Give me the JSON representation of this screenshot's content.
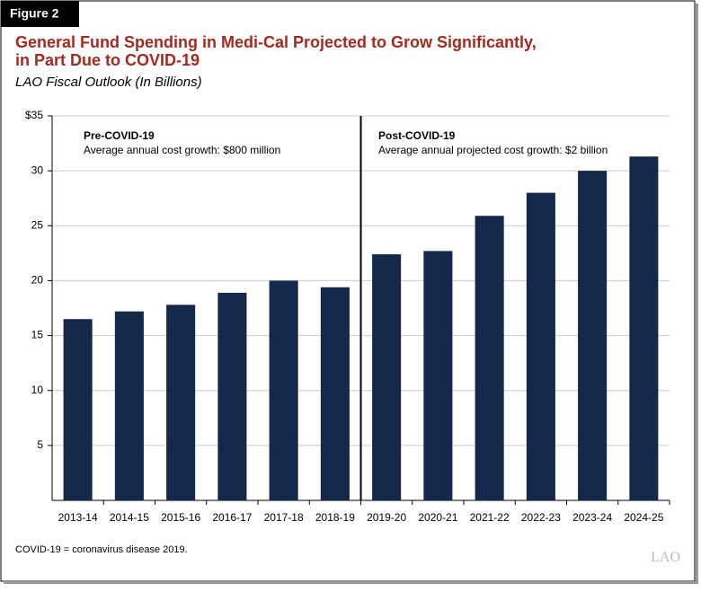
{
  "figure_label": "Figure 2",
  "chart_data": {
    "type": "bar",
    "title": "General Fund Spending in Medi-Cal Projected to Grow Significantly,",
    "title_line2": "in Part Due to COVID-19",
    "subtitle": "LAO Fiscal Outlook (In Billions)",
    "categories": [
      "2013-14",
      "2014-15",
      "2015-16",
      "2016-17",
      "2017-18",
      "2018-19",
      "2019-20",
      "2020-21",
      "2021-22",
      "2022-23",
      "2023-24",
      "2024-25"
    ],
    "values": [
      16.5,
      17.2,
      17.8,
      18.9,
      20.0,
      19.4,
      22.4,
      22.7,
      25.9,
      28.0,
      30.0,
      31.3
    ],
    "color": "#14284b",
    "ylim": [
      0,
      35
    ],
    "yticks": [
      5,
      10,
      15,
      20,
      25,
      30,
      {
        "value": 35,
        "label": "$35"
      }
    ],
    "grid": true,
    "annotations": [
      {
        "heading": "Pre-COVID-19",
        "text": "Average annual cost growth: $800 million"
      },
      {
        "heading": "Post-COVID-19",
        "text": "Average annual projected cost growth: $2 billion"
      }
    ]
  },
  "footnote": "COVID-19 = coronavirus disease 2019.",
  "source_logo": "LAO"
}
